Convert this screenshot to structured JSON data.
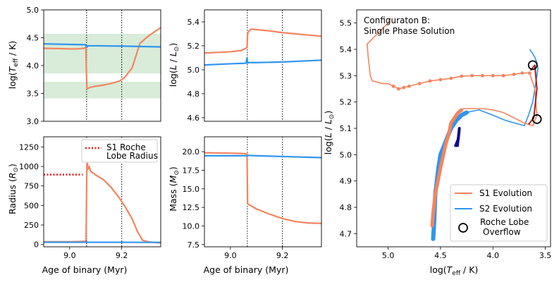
{
  "colors": {
    "s1": "#f4845f",
    "s2": "#2f96ee",
    "band": "#d9ecd9",
    "roche": "#ee1111",
    "s1_late": "#a52020",
    "s2_late": "#0b0b8f"
  },
  "chart_data": [
    {
      "id": "teff",
      "type": "line",
      "ylabel": "log(T_eff / K)",
      "xlim": [
        8.9,
        9.35
      ],
      "ylim": [
        3.0,
        5.0
      ],
      "xticks": [],
      "yticks": [
        3.0,
        3.5,
        4.0,
        4.5,
        5.0
      ],
      "ytick_labels": [
        "3.0",
        "3.5",
        "4.0",
        "4.5",
        "5.0"
      ],
      "vlines": [
        9.065,
        9.2
      ],
      "bands": [
        [
          3.86,
          4.57
        ],
        [
          3.41,
          3.71
        ]
      ],
      "series": [
        {
          "name": "S1",
          "x": [
            8.9,
            8.95,
            9.0,
            9.03,
            9.055,
            9.062,
            9.066,
            9.07,
            9.08,
            9.1,
            9.13,
            9.16,
            9.19,
            9.21,
            9.24,
            9.27,
            9.3,
            9.33,
            9.35
          ],
          "y": [
            4.31,
            4.305,
            4.3,
            4.3,
            4.31,
            4.33,
            3.6,
            3.59,
            3.61,
            3.63,
            3.65,
            3.68,
            3.72,
            3.78,
            3.96,
            4.4,
            4.52,
            4.62,
            4.68
          ]
        },
        {
          "name": "S2",
          "x": [
            8.9,
            9.0,
            9.06,
            9.066,
            9.07,
            9.1,
            9.2,
            9.3,
            9.35
          ],
          "y": [
            4.39,
            4.38,
            4.375,
            4.33,
            4.355,
            4.355,
            4.35,
            4.34,
            4.335
          ]
        }
      ]
    },
    {
      "id": "lum",
      "type": "line",
      "ylabel": "log(L / L⊙)",
      "xlim": [
        8.9,
        9.35
      ],
      "ylim": [
        4.57,
        5.5
      ],
      "xticks": [],
      "yticks": [
        4.6,
        4.8,
        5.0,
        5.2,
        5.4
      ],
      "ytick_labels": [
        "4.6",
        "4.8",
        "5.0",
        "5.2",
        "5.4"
      ],
      "vlines": [
        9.065,
        9.2
      ],
      "series": [
        {
          "name": "S1",
          "x": [
            8.9,
            8.95,
            9.0,
            9.04,
            9.06,
            9.064,
            9.066,
            9.07,
            9.075,
            9.08,
            9.1,
            9.15,
            9.2,
            9.25,
            9.3,
            9.35
          ],
          "y": [
            5.14,
            5.145,
            5.15,
            5.16,
            5.18,
            5.19,
            5.3,
            5.32,
            5.33,
            5.34,
            5.335,
            5.325,
            5.31,
            5.3,
            5.29,
            5.28
          ]
        },
        {
          "name": "S2",
          "x": [
            8.9,
            9.0,
            9.06,
            9.064,
            9.066,
            9.07,
            9.1,
            9.2,
            9.3,
            9.35
          ],
          "y": [
            5.04,
            5.05,
            5.055,
            5.1,
            5.055,
            5.06,
            5.06,
            5.065,
            5.075,
            5.08
          ]
        }
      ]
    },
    {
      "id": "radius",
      "type": "line",
      "ylabel": "Radius (R⊙)",
      "xlabel": "Age of binary (Myr)",
      "xlim": [
        8.9,
        9.35
      ],
      "ylim": [
        -30,
        1380
      ],
      "xticks": [
        9.0,
        9.2
      ],
      "xtick_labels": [
        "9.0",
        "9.2"
      ],
      "yticks": [
        0,
        250,
        500,
        750,
        1000,
        1250
      ],
      "ytick_labels": [
        "0",
        "250",
        "500",
        "750",
        "1000",
        "1250"
      ],
      "vlines": [
        9.065,
        9.2
      ],
      "legend": {
        "label": [
          "S1 Roche",
          "Lobe Radius"
        ],
        "position": "top-right"
      },
      "roche_lobe": {
        "x": [
          8.9,
          9.05
        ],
        "y": [
          895,
          895
        ]
      },
      "series": [
        {
          "name": "S1",
          "x": [
            8.9,
            8.95,
            9.0,
            9.04,
            9.06,
            9.063,
            9.066,
            9.068,
            9.07,
            9.075,
            9.08,
            9.1,
            9.13,
            9.16,
            9.19,
            9.21,
            9.24,
            9.26,
            9.28,
            9.3,
            9.33,
            9.35
          ],
          "y": [
            35,
            35,
            35,
            38,
            40,
            60,
            1000,
            1040,
            960,
            1000,
            940,
            890,
            830,
            730,
            600,
            500,
            330,
            170,
            55,
            35,
            25,
            20
          ]
        },
        {
          "name": "S2",
          "x": [
            8.9,
            9.0,
            9.1,
            9.2,
            9.3,
            9.35
          ],
          "y": [
            28,
            28,
            28,
            28,
            27,
            27
          ]
        }
      ]
    },
    {
      "id": "mass",
      "type": "line",
      "ylabel": "Mass (M⊙)",
      "xlabel": "Age of binary (Myr)",
      "xlim": [
        8.9,
        9.35
      ],
      "ylim": [
        7.2,
        22.0
      ],
      "xticks": [
        9.0,
        9.2
      ],
      "xtick_labels": [
        "9.0",
        "9.2"
      ],
      "yticks": [
        7.5,
        10.0,
        12.5,
        15.0,
        17.5,
        20.0
      ],
      "ytick_labels": [
        "7.5",
        "10.0",
        "12.5",
        "15.0",
        "17.5",
        "20.0"
      ],
      "vlines": [
        9.065,
        9.2
      ],
      "series": [
        {
          "name": "S1",
          "x": [
            8.9,
            9.0,
            9.05,
            9.064,
            9.066,
            9.07,
            9.1,
            9.15,
            9.2,
            9.25,
            9.3,
            9.35
          ],
          "y": [
            19.85,
            19.8,
            19.75,
            19.7,
            13.0,
            12.9,
            12.3,
            11.6,
            11.0,
            10.6,
            10.4,
            10.35
          ]
        },
        {
          "name": "S2",
          "x": [
            8.9,
            9.0,
            9.064,
            9.066,
            9.1,
            9.2,
            9.3,
            9.35
          ],
          "y": [
            19.45,
            19.45,
            19.45,
            19.5,
            19.45,
            19.35,
            19.25,
            19.2
          ]
        }
      ]
    },
    {
      "id": "hrd",
      "type": "line",
      "title": [
        "Configuraton B:",
        "Single Phase Solution"
      ],
      "xlabel": "log(T_eff / K)",
      "ylabel": "log(L / L⊙)",
      "xlim": [
        5.3,
        3.45
      ],
      "ylim": [
        4.65,
        5.55
      ],
      "xticks": [
        5.0,
        4.5,
        4.0,
        3.5
      ],
      "xtick_labels": [
        "5.0",
        "4.5",
        "4.0",
        "3.5"
      ],
      "yticks": [
        4.7,
        4.8,
        4.9,
        5.0,
        5.1,
        5.2,
        5.3,
        5.4,
        5.5
      ],
      "ytick_labels": [
        "4.7",
        "4.8",
        "4.9",
        "5.0",
        "5.1",
        "5.2",
        "5.3",
        "5.4",
        "5.5"
      ],
      "legend": {
        "entries": [
          "S1 Evolution",
          "S2 Evolution",
          "Roche Lobe\nOverflow"
        ],
        "position": "bottom-right"
      },
      "roche_overflow_points": [
        {
          "x": 3.62,
          "y": 5.34
        },
        {
          "x": 3.58,
          "y": 5.135
        }
      ],
      "series": [
        {
          "name": "S1 Evolution",
          "x": [
            4.58,
            4.57,
            4.55,
            4.5,
            4.45,
            4.42,
            4.4,
            4.35,
            4.33,
            4.3,
            4.28,
            4.25,
            4.2,
            4.15,
            4.1,
            4.0,
            3.9,
            3.8,
            3.7,
            3.62,
            3.58,
            3.6,
            3.65,
            3.72,
            3.8,
            3.9,
            4.0,
            4.1,
            4.2,
            4.3,
            4.4,
            4.5,
            4.6,
            4.7,
            4.8,
            4.85,
            4.9,
            4.95,
            5.0,
            5.05,
            5.1,
            5.15,
            5.17,
            5.19,
            5.2,
            5.1,
            5.05,
            5.0,
            4.98
          ],
          "y": [
            4.73,
            4.78,
            4.85,
            4.95,
            5.04,
            5.08,
            5.12,
            5.15,
            5.16,
            5.17,
            5.175,
            5.175,
            5.175,
            5.175,
            5.175,
            5.17,
            5.16,
            5.14,
            5.12,
            5.11,
            5.15,
            5.25,
            5.31,
            5.31,
            5.305,
            5.3,
            5.3,
            5.3,
            5.3,
            5.298,
            5.29,
            5.285,
            5.28,
            5.27,
            5.26,
            5.255,
            5.25,
            5.26,
            5.27,
            5.27,
            5.275,
            5.28,
            5.3,
            5.37,
            5.42,
            5.46,
            5.48,
            5.5,
            5.52
          ]
        },
        {
          "name": "S2 Evolution",
          "x": [
            4.57,
            4.56,
            4.55,
            4.52,
            4.5,
            4.45,
            4.4,
            4.35,
            4.3,
            4.25,
            4.2,
            4.13,
            4.0,
            3.88,
            3.7,
            3.66,
            3.62,
            3.6,
            3.58,
            3.57,
            3.58,
            3.6,
            3.63,
            3.65
          ],
          "y": [
            4.68,
            4.75,
            4.85,
            4.95,
            5.0,
            5.05,
            5.1,
            5.13,
            5.15,
            5.16,
            5.165,
            5.17,
            5.15,
            5.13,
            5.11,
            5.15,
            5.2,
            5.25,
            5.3,
            5.33,
            5.35,
            5.37,
            5.39,
            5.4
          ]
        }
      ]
    }
  ]
}
